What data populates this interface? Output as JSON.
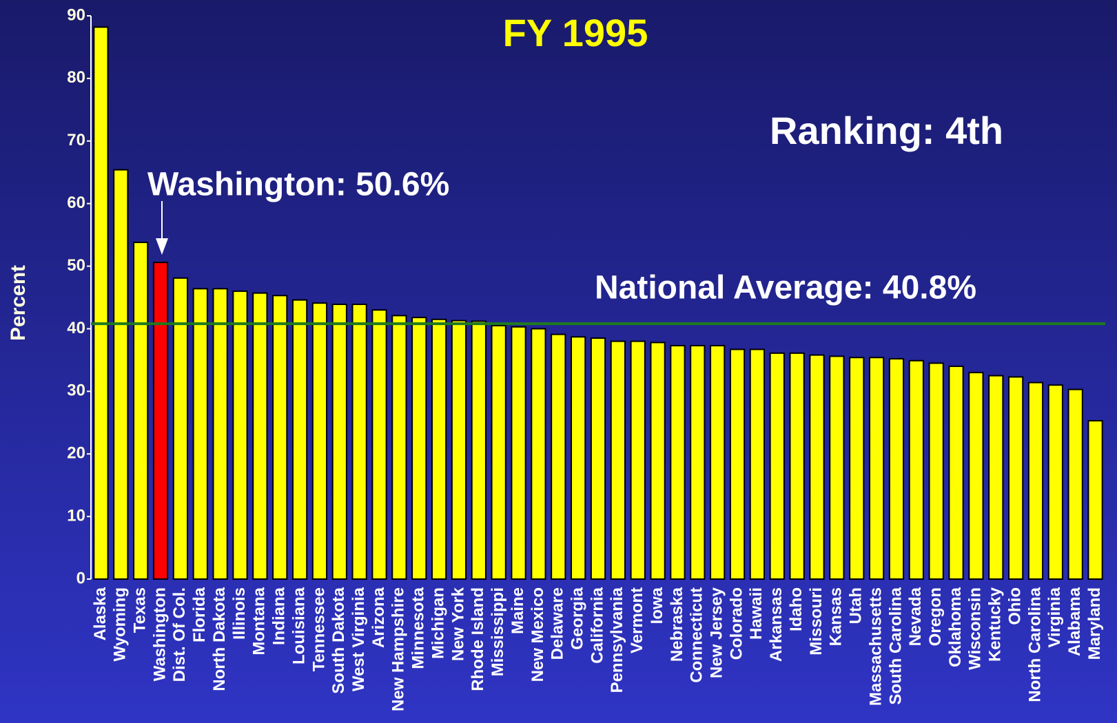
{
  "chart_data": {
    "type": "bar",
    "title": "FY 1995",
    "y_label": "Percent",
    "annotations": [
      "Washington: 50.6%",
      "Ranking: 4th"
    ],
    "reference_line": {
      "value": 40.8,
      "label": "National Average: 40.8%",
      "color": "#1f7a1f"
    },
    "categories": [
      "Alaska",
      "Wyoming",
      "Texas",
      "Washington",
      "Dist. Of Col.",
      "Florida",
      "North Dakota",
      "Illinois",
      "Montana",
      "Indiana",
      "Louisiana",
      "Tennessee",
      "South Dakota",
      "West Virginia",
      "Arizona",
      "New Hampshire",
      "Minnesota",
      "Michigan",
      "New York",
      "Rhode Island",
      "Mississippi",
      "Maine",
      "New Mexico",
      "Delaware",
      "Georgia",
      "California",
      "Pennsylvania",
      "Vermont",
      "Iowa",
      "Nebraska",
      "Connecticut",
      "New Jersey",
      "Colorado",
      "Hawaii",
      "Arkansas",
      "Idaho",
      "Missouri",
      "Kansas",
      "Utah",
      "Massachusetts",
      "South Carolina",
      "Nevada",
      "Oregon",
      "Oklahoma",
      "Wisconsin",
      "Kentucky",
      "Ohio",
      "North Carolina",
      "Virginia",
      "Alabama",
      "Maryland"
    ],
    "values": [
      88.2,
      65.4,
      53.8,
      50.6,
      48.1,
      46.4,
      46.4,
      46.0,
      45.7,
      45.3,
      44.6,
      44.1,
      43.9,
      43.9,
      43.0,
      42.1,
      41.8,
      41.5,
      41.3,
      41.2,
      40.5,
      40.3,
      40.0,
      39.1,
      38.7,
      38.5,
      38.0,
      38.0,
      37.8,
      37.3,
      37.3,
      37.3,
      36.7,
      36.7,
      36.1,
      36.1,
      35.8,
      35.6,
      35.4,
      35.4,
      35.2,
      34.9,
      34.5,
      34.0,
      33.0,
      32.5,
      32.3,
      31.4,
      31.0,
      30.3,
      25.3
    ],
    "colors": [
      "#ffff00",
      "#ffff00",
      "#ffff00",
      "#ff0000",
      "#ffff00",
      "#ffff00",
      "#ffff00",
      "#ffff00",
      "#ffff00",
      "#ffff00",
      "#ffff00",
      "#ffff00",
      "#ffff00",
      "#ffff00",
      "#ffff00",
      "#ffff00",
      "#ffff00",
      "#ffff00",
      "#ffff00",
      "#ffff00",
      "#ffff00",
      "#ffff00",
      "#ffff00",
      "#ffff00",
      "#ffff00",
      "#ffff00",
      "#ffff00",
      "#ffff00",
      "#ffff00",
      "#ffff00",
      "#ffff00",
      "#ffff00",
      "#ffff00",
      "#ffff00",
      "#ffff00",
      "#ffff00",
      "#ffff00",
      "#ffff00",
      "#ffff00",
      "#ffff00",
      "#ffff00",
      "#ffff00",
      "#ffff00",
      "#ffff00",
      "#ffff00",
      "#ffff00",
      "#ffff00",
      "#ffff00",
      "#ffff00",
      "#ffff00",
      "#ffff00"
    ],
    "ylim": [
      0,
      90
    ],
    "yticks": [
      0,
      10,
      20,
      30,
      40,
      50,
      60,
      70,
      80,
      90
    ]
  }
}
